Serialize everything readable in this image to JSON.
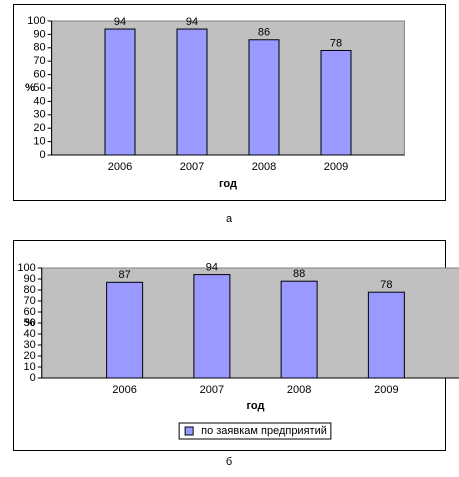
{
  "chart_data": [
    {
      "type": "bar",
      "caption": "а",
      "xlabel": "год",
      "ylabel": "%",
      "categories": [
        "2006",
        "2007",
        "2008",
        "2009"
      ],
      "values": [
        94,
        94,
        86,
        78
      ],
      "color": "#9999ff",
      "ylim": [
        0,
        100
      ],
      "yticks": [
        0,
        10,
        20,
        30,
        40,
        50,
        60,
        70,
        80,
        90,
        100
      ],
      "grid": false
    },
    {
      "type": "bar",
      "caption": "б",
      "xlabel": "год",
      "ylabel": "%",
      "categories": [
        "2006",
        "2007",
        "2008",
        "2009"
      ],
      "series": [
        {
          "name": "по заявкам предприятий",
          "color": "#9999ff",
          "values": [
            87,
            94,
            88,
            78
          ]
        }
      ],
      "ylim": [
        0,
        100
      ],
      "yticks": [
        0,
        10,
        20,
        30,
        40,
        50,
        60,
        70,
        80,
        90,
        100
      ],
      "grid": false,
      "legend": "bottom"
    }
  ]
}
